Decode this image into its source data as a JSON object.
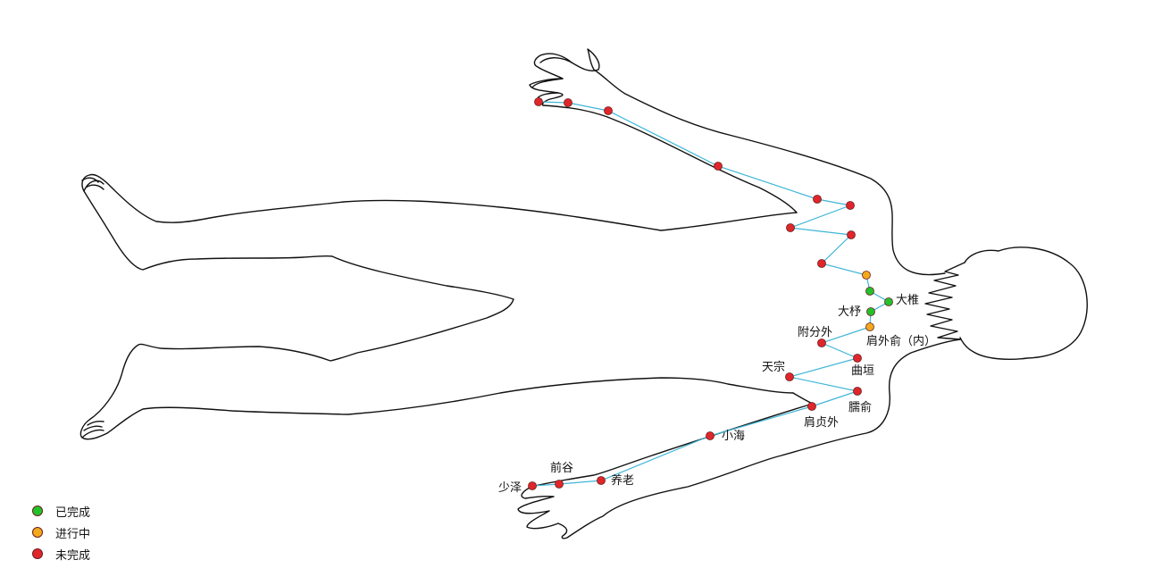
{
  "colors": {
    "done": "#22c32a",
    "in_progress": "#f2aa1c",
    "not_done": "#e0262b",
    "route": "#3fb6d6"
  },
  "legend": [
    {
      "label": "已完成",
      "status": "done"
    },
    {
      "label": "进行中",
      "status": "in_progress"
    },
    {
      "label": "未完成",
      "status": "not_done"
    }
  ],
  "acupoints": {
    "dazhui": "大椎",
    "dazhu": "大杼",
    "jianwaishu": "肩外俞（内）",
    "fufen": "附分外",
    "quyuan": "曲垣",
    "tianzong": "天宗",
    "naoshu": "臑俞",
    "jianzhen": "肩贞外",
    "xiaohai": "小海",
    "yanglao": "养老",
    "qiangu": "前谷",
    "shaoze": "少泽"
  }
}
